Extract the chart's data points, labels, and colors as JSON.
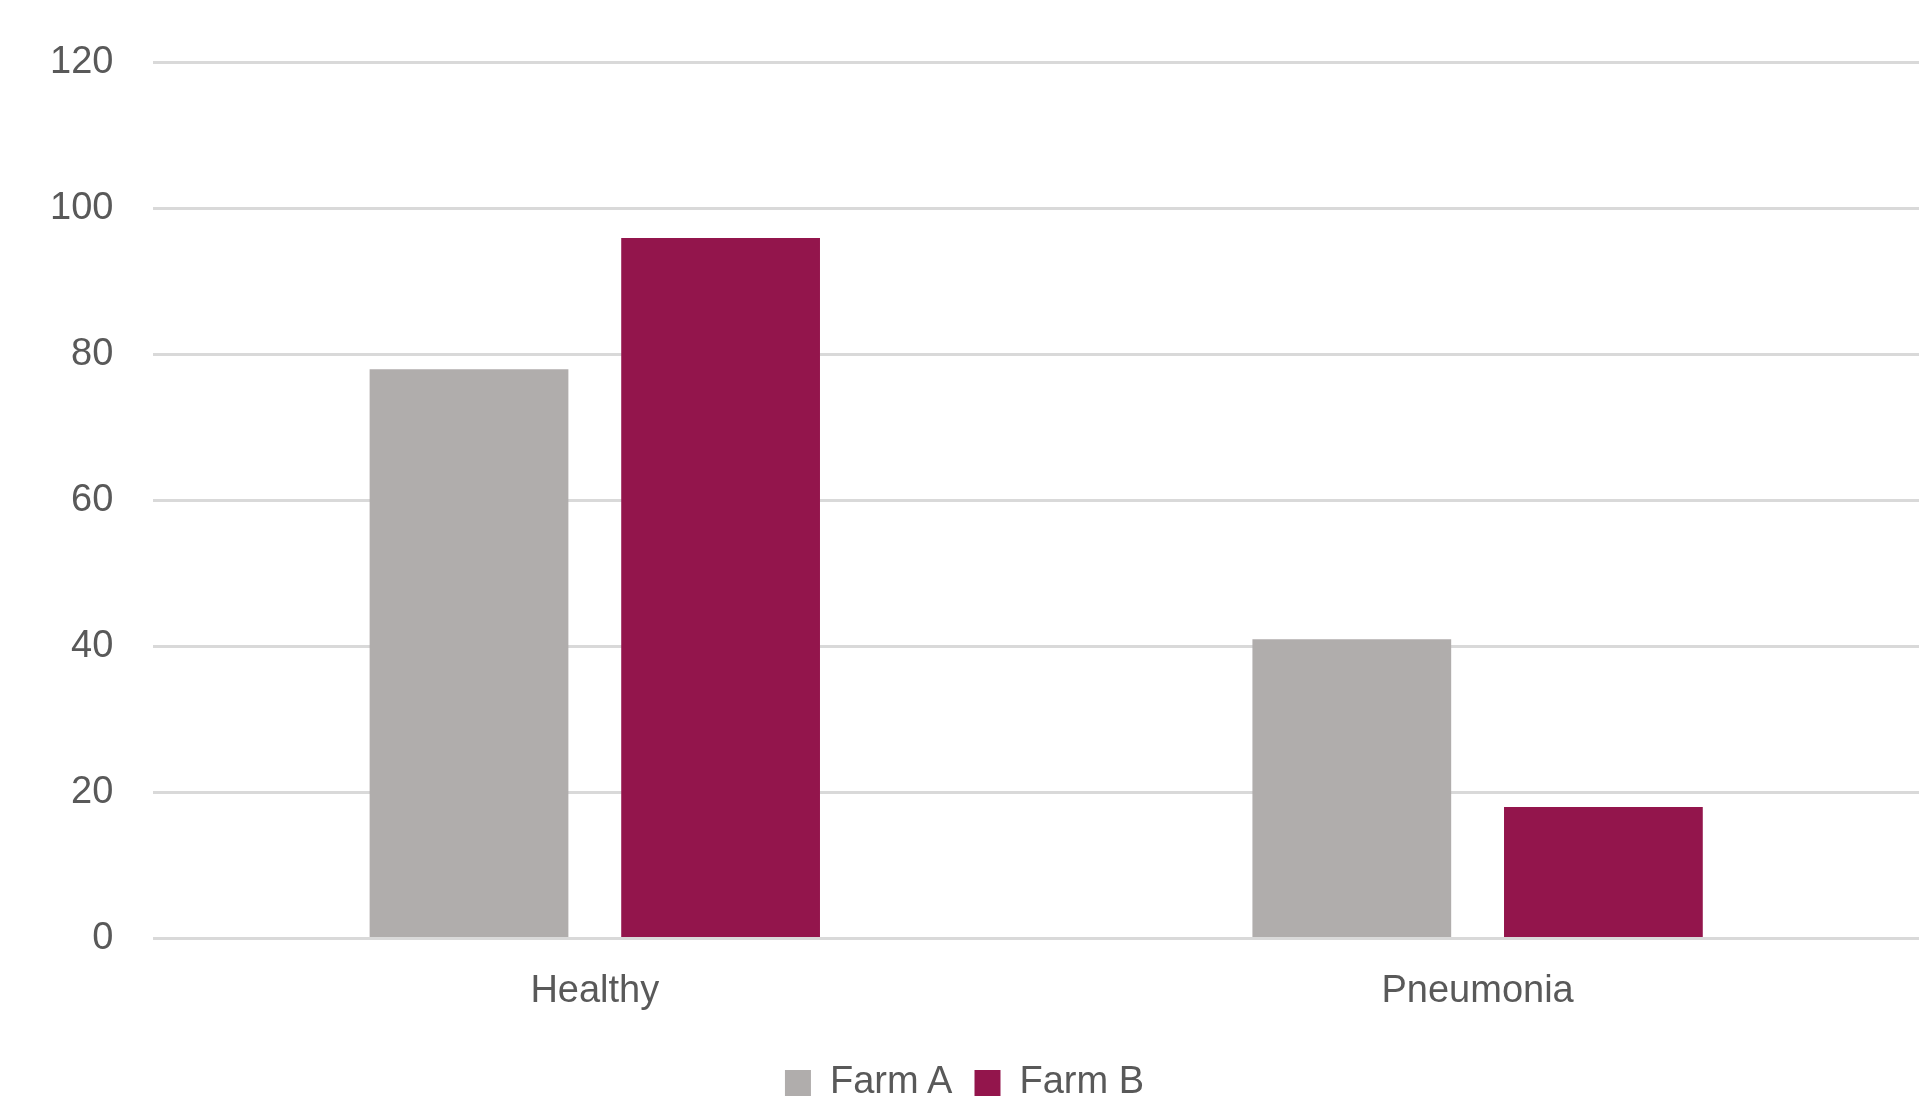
{
  "chart_data": {
    "type": "bar",
    "categories": [
      "Healthy",
      "Pneumonia"
    ],
    "series": [
      {
        "name": "Farm A",
        "color": "#b0adac",
        "values": [
          78,
          41
        ]
      },
      {
        "name": "Farm B",
        "color": "#93154c",
        "values": [
          96,
          18
        ]
      }
    ],
    "ylim": [
      0,
      120
    ],
    "yticks": [
      0,
      20,
      40,
      60,
      80,
      100,
      120
    ],
    "grid": "y",
    "legend": "bottom"
  }
}
